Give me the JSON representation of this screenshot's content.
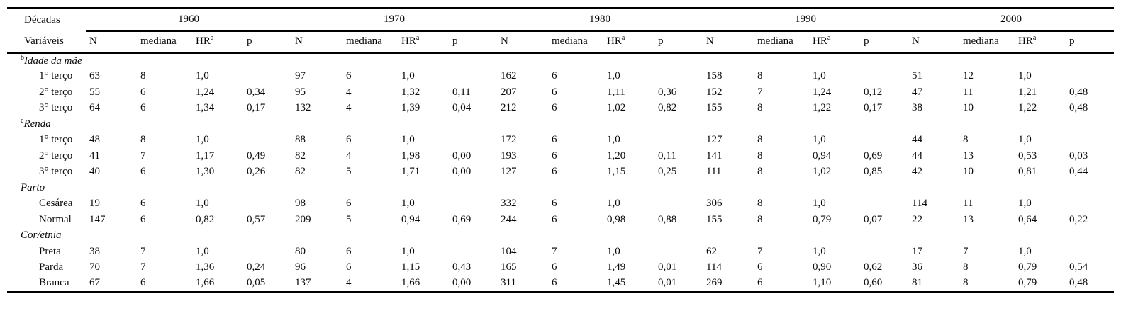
{
  "table": {
    "corner_row1": "Décadas",
    "corner_row2": "Variáveis",
    "decades": [
      "1960",
      "1970",
      "1980",
      "1990",
      "2000"
    ],
    "sub_headers": [
      "N",
      "mediana",
      "HR",
      "p"
    ],
    "hr_superscript": "a",
    "groups": [
      {
        "label": "Idade da mãe",
        "superscript": "b",
        "rows": [
          {
            "label": "1° terço",
            "cells": [
              "63",
              "8",
              "1,0",
              "",
              "97",
              "6",
              "1,0",
              "",
              "162",
              "6",
              "1,0",
              "",
              "158",
              "8",
              "1,0",
              "",
              "51",
              "12",
              "1,0",
              ""
            ]
          },
          {
            "label": "2° terço",
            "cells": [
              "55",
              "6",
              "1,24",
              "0,34",
              "95",
              "4",
              "1,32",
              "0,11",
              "207",
              "6",
              "1,11",
              "0,36",
              "152",
              "7",
              "1,24",
              "0,12",
              "47",
              "11",
              "1,21",
              "0,48"
            ]
          },
          {
            "label": "3° terço",
            "cells": [
              "64",
              "6",
              "1,34",
              "0,17",
              "132",
              "4",
              "1,39",
              "0,04",
              "212",
              "6",
              "1,02",
              "0,82",
              "155",
              "8",
              "1,22",
              "0,17",
              "38",
              "10",
              "1,22",
              "0,48"
            ]
          }
        ]
      },
      {
        "label": "Renda",
        "superscript": "c",
        "rows": [
          {
            "label": "1° terço",
            "cells": [
              "48",
              "8",
              "1,0",
              "",
              "88",
              "6",
              "1,0",
              "",
              "172",
              "6",
              "1,0",
              "",
              "127",
              "8",
              "1,0",
              "",
              "44",
              "8",
              "1,0",
              ""
            ]
          },
          {
            "label": "2° terço",
            "cells": [
              "41",
              "7",
              "1,17",
              "0,49",
              "82",
              "4",
              "1,98",
              "0,00",
              "193",
              "6",
              "1,20",
              "0,11",
              "141",
              "8",
              "0,94",
              "0,69",
              "44",
              "13",
              "0,53",
              "0,03"
            ]
          },
          {
            "label": "3° terço",
            "cells": [
              "40",
              "6",
              "1,30",
              "0,26",
              "82",
              "5",
              "1,71",
              "0,00",
              "127",
              "6",
              "1,15",
              "0,25",
              "111",
              "8",
              "1,02",
              "0,85",
              "42",
              "10",
              "0,81",
              "0,44"
            ]
          }
        ]
      },
      {
        "label": "Parto",
        "superscript": "",
        "rows": [
          {
            "label": "Cesárea",
            "cells": [
              "19",
              "6",
              "1,0",
              "",
              "98",
              "6",
              "1,0",
              "",
              "332",
              "6",
              "1,0",
              "",
              "306",
              "8",
              "1,0",
              "",
              "114",
              "11",
              "1,0",
              ""
            ]
          },
          {
            "label": "Normal",
            "cells": [
              "147",
              "6",
              "0,82",
              "0,57",
              "209",
              "5",
              "0,94",
              "0,69",
              "244",
              "6",
              "0,98",
              "0,88",
              "155",
              "8",
              "0,79",
              "0,07",
              "22",
              "13",
              "0,64",
              "0,22"
            ]
          }
        ]
      },
      {
        "label": "Cor/etnia",
        "superscript": "",
        "rows": [
          {
            "label": "Preta",
            "cells": [
              "38",
              "7",
              "1,0",
              "",
              "80",
              "6",
              "1,0",
              "",
              "104",
              "7",
              "1,0",
              "",
              "62",
              "7",
              "1,0",
              "",
              "17",
              "7",
              "1,0",
              ""
            ]
          },
          {
            "label": "Parda",
            "cells": [
              "70",
              "7",
              "1,36",
              "0,24",
              "96",
              "6",
              "1,15",
              "0,43",
              "165",
              "6",
              "1,49",
              "0,01",
              "114",
              "6",
              "0,90",
              "0,62",
              "36",
              "8",
              "0,79",
              "0,54"
            ]
          },
          {
            "label": "Branca",
            "cells": [
              "67",
              "6",
              "1,66",
              "0,05",
              "137",
              "4",
              "1,66",
              "0,00",
              "311",
              "6",
              "1,45",
              "0,01",
              "269",
              "6",
              "1,10",
              "0,60",
              "81",
              "8",
              "0,79",
              "0,48"
            ]
          }
        ]
      }
    ]
  }
}
